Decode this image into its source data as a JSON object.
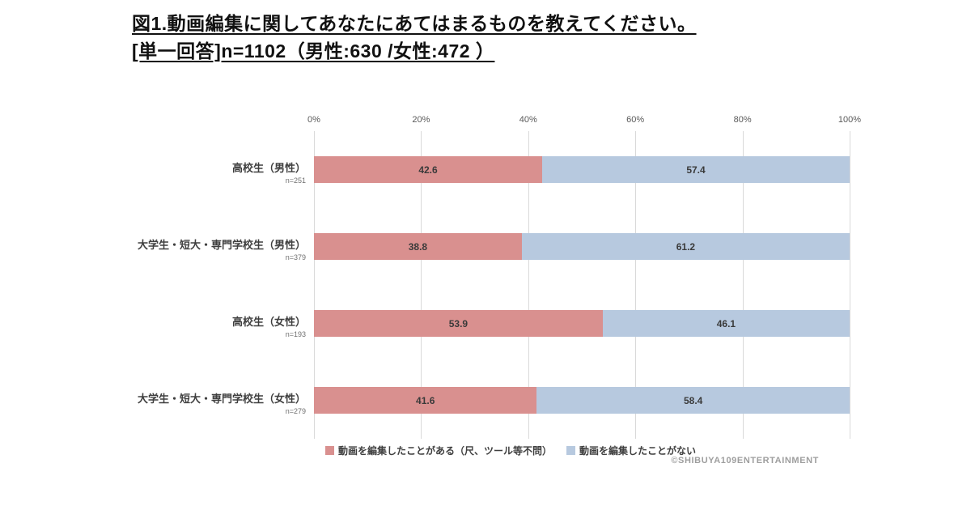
{
  "title": {
    "line1": "図1.動画編集に関してあなたにあてはまるものを教えてください。",
    "line2": "[単一回答]n=1102（男性:630 /女性:472 ）"
  },
  "axis": {
    "ticks": [
      "0%",
      "20%",
      "40%",
      "60%",
      "80%",
      "100%"
    ]
  },
  "chart_data": {
    "type": "bar",
    "orientation": "horizontal",
    "stacked": true,
    "title": "図1.動画編集に関してあなたにあてはまるものを教えてください。[単一回答]n=1102（男性:630 /女性:472）",
    "categories": [
      "高校生（男性）",
      "大学生・短大・専門学校生（男性）",
      "高校生（女性）",
      "大学生・短大・専門学校生（女性）"
    ],
    "sample_sizes": [
      "n=251",
      "n=379",
      "n=193",
      "n=279"
    ],
    "series": [
      {
        "name": "動画を編集したことがある（尺、ツール等不問）",
        "color": "#d9908f",
        "values": [
          42.6,
          38.8,
          53.9,
          41.6
        ]
      },
      {
        "name": "動画を編集したことがない",
        "color": "#b7c9df",
        "values": [
          57.4,
          61.2,
          46.1,
          58.4
        ]
      }
    ],
    "xlim": [
      0,
      100
    ],
    "x_ticks": [
      "0%",
      "20%",
      "40%",
      "60%",
      "80%",
      "100%"
    ],
    "grid": true,
    "legend_position": "bottom"
  },
  "footer": {
    "copyright": "©SHIBUYA109ENTERTAINMENT"
  }
}
